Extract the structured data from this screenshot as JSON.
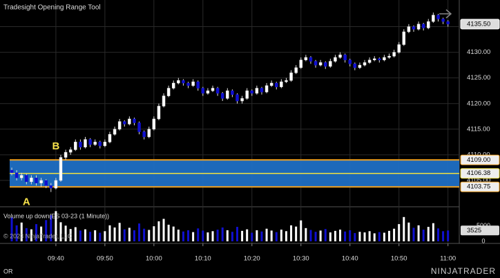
{
  "chart_data": {
    "type": "candlestick",
    "title": "Tradesight Opening Range Tool",
    "up_color": "#ffffff",
    "down_color": "#1010d0",
    "grid": true,
    "xlim": [
      -2.4,
      91.3
    ],
    "xticks": [
      {
        "value": 9,
        "label": "09:40"
      },
      {
        "value": 19,
        "label": "09:50"
      },
      {
        "value": 29,
        "label": "10:00"
      },
      {
        "value": 39,
        "label": "10:10"
      },
      {
        "value": 49,
        "label": "10:20"
      },
      {
        "value": 59,
        "label": "10:30"
      },
      {
        "value": 69,
        "label": "10:40"
      },
      {
        "value": 79,
        "label": "10:50"
      },
      {
        "value": 89,
        "label": "11:00"
      }
    ],
    "ylim": [
      4100,
      4140.2
    ],
    "yticks": [
      {
        "value": 4105,
        "label": "4105.00"
      },
      {
        "value": 4110,
        "label": "4110.00"
      },
      {
        "value": 4115,
        "label": "4115.00"
      },
      {
        "value": 4120,
        "label": "4120.00"
      },
      {
        "value": 4125,
        "label": "4125.00"
      },
      {
        "value": 4130,
        "label": "4130.00"
      },
      {
        "value": 4135,
        "label": "4135.00"
      }
    ],
    "open": [
      4107,
      4106.5,
      4105.5,
      4106,
      4104.75,
      4105.5,
      4104.5,
      4105,
      4104,
      4103.5,
      4105,
      4109.5,
      4110.5,
      4111,
      4112.5,
      4111.5,
      4113,
      4112,
      4112.5,
      4111.75,
      4112.5,
      4114,
      4115,
      4116.5,
      4116,
      4117,
      4116.25,
      4114.5,
      4113.5,
      4115,
      4117,
      4119.5,
      4121.5,
      4123,
      4124,
      4124.5,
      4124,
      4123.5,
      4124.25,
      4123,
      4122,
      4122.5,
      4123,
      4122,
      4121,
      4122.5,
      4121.75,
      4120.5,
      4121,
      4122.5,
      4122,
      4123,
      4122.25,
      4123.5,
      4124,
      4123.25,
      4124.25,
      4124.5,
      4126,
      4127,
      4128.5,
      4129,
      4128.25,
      4127.5,
      4128,
      4127.25,
      4128.25,
      4129,
      4129.5,
      4128.5,
      4127.75,
      4127,
      4127.5,
      4128,
      4128.5,
      4128.75,
      4128.5,
      4129,
      4129.25,
      4130,
      4131.5,
      4134,
      4135,
      4134.5,
      4135.5,
      4134.75,
      4136,
      4137.25,
      4136.5,
      4136
    ],
    "high": [
      4107.5,
      4107,
      4106.5,
      4106.25,
      4106,
      4106,
      4105.5,
      4105.25,
      4104.5,
      4105.5,
      4110,
      4111,
      4111.5,
      4113,
      4113,
      4113.5,
      4113.25,
      4113,
      4112.75,
      4113,
      4114.5,
      4115.5,
      4117,
      4116.75,
      4117.5,
      4117.25,
      4116.5,
      4114.75,
      4115.5,
      4117.5,
      4120,
      4122,
      4123.5,
      4124.5,
      4125,
      4124.75,
      4124.25,
      4124.75,
      4124.5,
      4123.25,
      4123,
      4123.5,
      4123.25,
      4122.25,
      4123,
      4122.75,
      4122,
      4121.5,
      4123,
      4122.75,
      4123.5,
      4123.25,
      4124,
      4124.5,
      4124.25,
      4124.75,
      4125,
      4126.5,
      4127.5,
      4129,
      4129.5,
      4129.25,
      4128.5,
      4128.5,
      4128.25,
      4128.75,
      4129.5,
      4130,
      4129.75,
      4128.75,
      4128,
      4128,
      4128.5,
      4129,
      4129.25,
      4129,
      4129.5,
      4129.75,
      4130.5,
      4132,
      4134.5,
      4135.5,
      4135.25,
      4136,
      4135.75,
      4136.5,
      4137.75,
      4137.5,
      4136.75,
      4136.25
    ],
    "low": [
      4106,
      4105,
      4105,
      4104.25,
      4104.25,
      4104,
      4103.75,
      4103.5,
      4102.75,
      4103.25,
      4104.75,
      4109,
      4110,
      4110.75,
      4111,
      4111.25,
      4111.5,
      4111.75,
      4111.25,
      4111.5,
      4112.25,
      4113.75,
      4114.75,
      4115.5,
      4115.75,
      4115.75,
      4114,
      4113,
      4113.25,
      4114.75,
      4116.75,
      4119.25,
      4121.25,
      4122.75,
      4123.75,
      4123.5,
      4123,
      4123.25,
      4122.5,
      4121.5,
      4121.75,
      4122.25,
      4121.5,
      4120.5,
      4120.75,
      4121.25,
      4120,
      4120,
      4120.75,
      4121.5,
      4121.75,
      4121.75,
      4122,
      4123.25,
      4122.75,
      4123,
      4124,
      4124.25,
      4125.75,
      4126.75,
      4128.25,
      4127.75,
      4127,
      4127.25,
      4126.75,
      4127,
      4128,
      4128.75,
      4128,
      4127.25,
      4126.5,
      4126.75,
      4127.25,
      4127.75,
      4128.25,
      4128,
      4128.25,
      4128.75,
      4129,
      4129.75,
      4131.25,
      4133.75,
      4134,
      4134.25,
      4134.25,
      4134.5,
      4135.75,
      4136,
      4135.5,
      4135
    ],
    "close": [
      4106.5,
      4105.5,
      4106,
      4104.75,
      4105.5,
      4104.5,
      4105,
      4104,
      4103.5,
      4105,
      4109.5,
      4110.5,
      4111,
      4112.5,
      4111.5,
      4113,
      4112,
      4112.5,
      4111.75,
      4112.5,
      4114,
      4115,
      4116.5,
      4116,
      4117,
      4116.25,
      4114.5,
      4113.5,
      4115,
      4117,
      4119.5,
      4121.5,
      4123,
      4124,
      4124.5,
      4124,
      4123.5,
      4124.25,
      4123,
      4122,
      4122.5,
      4123,
      4122,
      4121,
      4122.5,
      4121.75,
      4120.5,
      4121,
      4122.5,
      4122,
      4123,
      4122.25,
      4123.5,
      4124,
      4123.25,
      4124.25,
      4124.5,
      4126,
      4127,
      4128.5,
      4129,
      4128.25,
      4127.5,
      4128,
      4127.25,
      4128.25,
      4129,
      4129.5,
      4128.5,
      4127.75,
      4127,
      4127.5,
      4128,
      4128.5,
      4128.75,
      4128.5,
      4129,
      4129.25,
      4130,
      4131.5,
      4134,
      4135,
      4134.5,
      4135.5,
      4134.75,
      4136,
      4137.25,
      4136.5,
      4136,
      4135.5
    ],
    "last_price": {
      "value": 4135.5,
      "label": "4135.50"
    },
    "opening_range": {
      "color": "#1f6fc4",
      "border": "#f0a020",
      "mid_color": "#f0e040",
      "high": {
        "value": 4109,
        "label": "4109.00"
      },
      "mid": {
        "value": 4106.38,
        "label": "4106.38"
      },
      "low": {
        "value": 4103.75,
        "label": "4103.75"
      }
    },
    "annotations": [
      "A",
      "B"
    ],
    "volume": {
      "title": "Volume up down(ES 03-23 (1 Minute))",
      "ylim": [
        0,
        11000
      ],
      "yticks": [
        0,
        5000
      ],
      "last": 3525,
      "values": [
        7800,
        5200,
        6100,
        4300,
        3900,
        5600,
        4800,
        6900,
        8500,
        9800,
        6200,
        5100,
        4000,
        4600,
        3500,
        3900,
        3100,
        3600,
        2800,
        3300,
        5200,
        4500,
        6000,
        3900,
        4400,
        3600,
        5800,
        4100,
        3700,
        4900,
        6500,
        7300,
        5400,
        4800,
        3800,
        3200,
        3600,
        3000,
        4200,
        3500,
        2900,
        3300,
        3800,
        4500,
        3600,
        3100,
        4700,
        3400,
        3900,
        2800,
        3600,
        3200,
        4100,
        3500,
        3000,
        3800,
        3300,
        5200,
        4800,
        6800,
        4300,
        3700,
        3100,
        3500,
        4000,
        2900,
        3400,
        3800,
        3200,
        3600,
        2700,
        3100,
        2900,
        3300,
        2600,
        3000,
        2800,
        3400,
        4100,
        5600,
        7900,
        6100,
        4400,
        5200,
        3800,
        4700,
        5900,
        4200,
        3300,
        3525
      ]
    },
    "copyright": "© 2023 NinjaTrader, LLC",
    "tab": "OR",
    "brand": "NINJATRADER"
  }
}
